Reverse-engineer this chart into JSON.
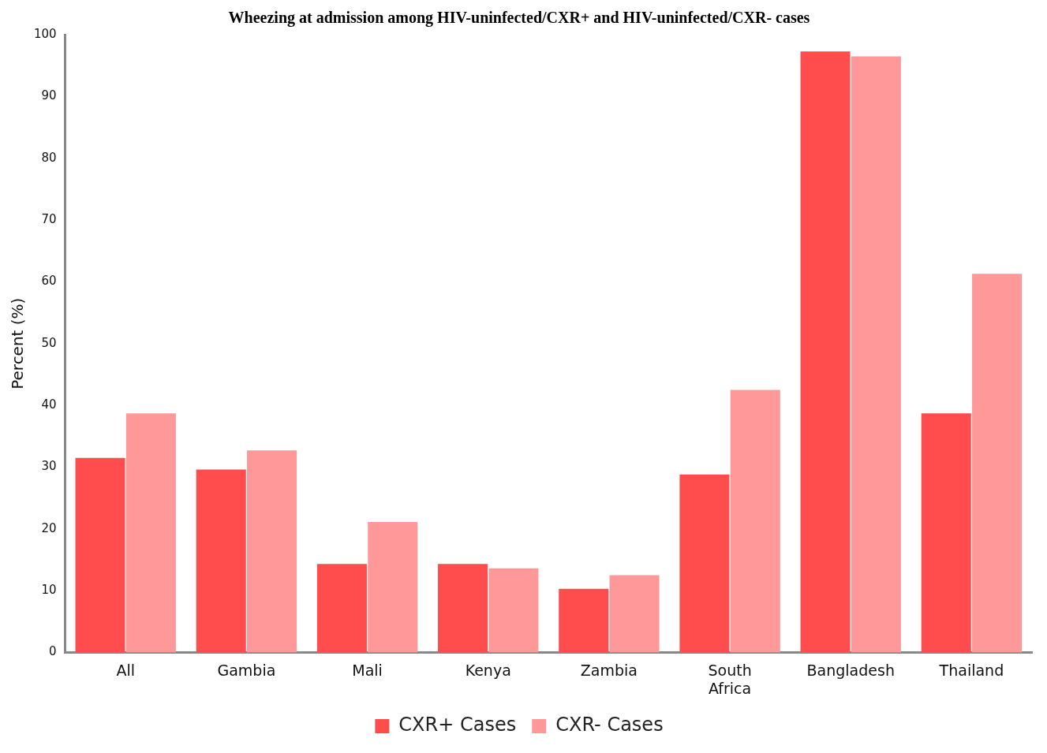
{
  "chart_data": {
    "type": "bar",
    "title": "Wheezing at admission among HIV-uninfected/CXR+ and HIV-uninfected/CXR- cases",
    "ylabel": "Percent (%)",
    "categories": [
      "All",
      "Gambia",
      "Mali",
      "Kenya",
      "Zambia",
      "South Africa",
      "Bangladesh",
      "Thailand"
    ],
    "series": [
      {
        "name": "CXR+ Cases",
        "color": "#ff4d4d",
        "values": [
          31.5,
          29.6,
          14.3,
          14.3,
          10.3,
          28.8,
          97.3,
          38.7
        ]
      },
      {
        "name": "CXR- Cases",
        "color": "#ff9999",
        "values": [
          38.7,
          32.7,
          21.1,
          13.6,
          12.5,
          42.5,
          96.5,
          61.3
        ]
      }
    ],
    "ylim": [
      0,
      100
    ],
    "yticks": [
      0,
      10,
      20,
      30,
      40,
      50,
      60,
      70,
      80,
      90,
      100
    ],
    "grid": false,
    "legend": "bottom"
  }
}
